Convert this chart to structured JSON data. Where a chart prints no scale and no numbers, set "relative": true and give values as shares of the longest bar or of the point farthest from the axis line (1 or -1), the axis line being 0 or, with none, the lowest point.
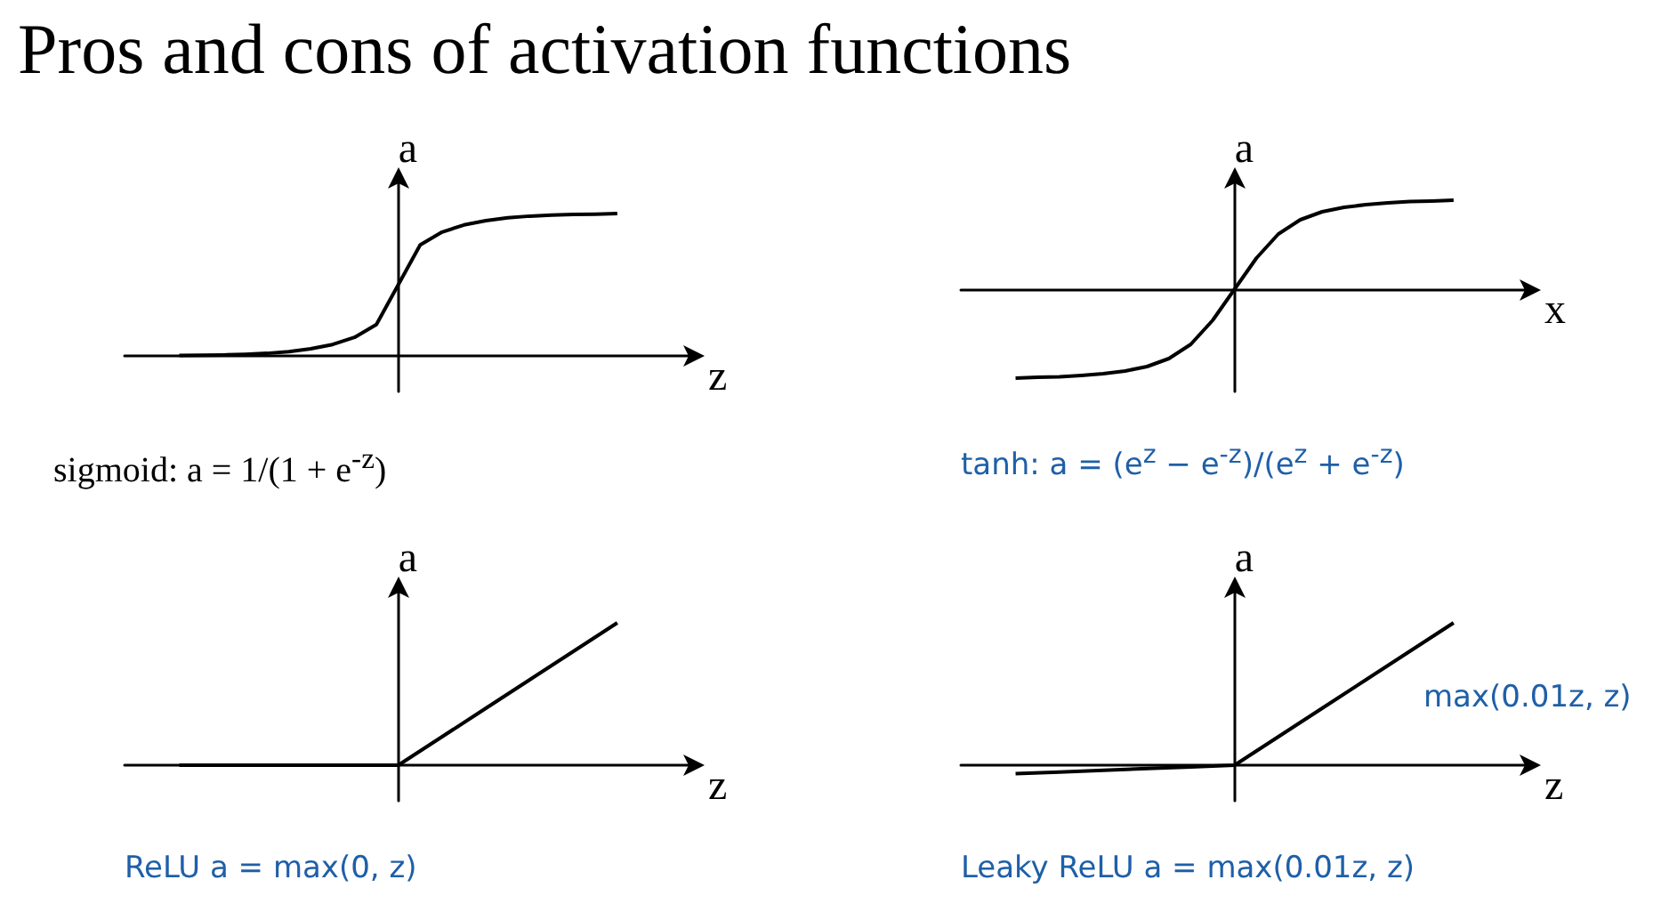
{
  "chart_data": [
    {
      "type": "line",
      "title": "Pros and cons of activation functions",
      "xlabel": "z",
      "ylabel": "a",
      "relative": true,
      "grid": false,
      "marker": "none",
      "categories": [
        null,
        null,
        null,
        null,
        null,
        null,
        null,
        null,
        null,
        null,
        null,
        null,
        null,
        null,
        null,
        null,
        null,
        null,
        null,
        null,
        null
      ],
      "series": [
        {
          "color": "#000000",
          "values": [
            0.0025,
            0.004,
            0.007,
            0.011,
            0.018,
            0.03,
            0.05,
            0.08,
            0.13,
            0.22,
            0.5,
            0.78,
            0.87,
            0.92,
            0.95,
            0.97,
            0.982,
            0.989,
            0.993,
            0.996,
            1
          ]
        }
      ],
      "annotations": [
        "sigmoid:  a = 1/(1 + e$^{-z}$)"
      ]
    },
    {
      "type": "line",
      "xlabel": "x",
      "ylabel": "a",
      "relative": true,
      "grid": false,
      "marker": "none",
      "categories": [
        null,
        null,
        null,
        null,
        null,
        null,
        null,
        null,
        null,
        null,
        null,
        null,
        null,
        null,
        null,
        null,
        null,
        null,
        null,
        null,
        null
      ],
      "series": [
        {
          "color": "#000000",
          "values": [
            -1,
            -0.99,
            -0.985,
            -0.97,
            -0.95,
            -0.92,
            -0.87,
            -0.78,
            -0.62,
            -0.35,
            0,
            0.35,
            0.62,
            0.78,
            0.87,
            0.92,
            0.95,
            0.97,
            0.985,
            0.99,
            1
          ]
        }
      ],
      "annotations": [
        "tanh:  a = (e$^{z}$ − e$^{-z}$)/(e$^{z}$ + e$^{-z}$)"
      ]
    },
    {
      "type": "line",
      "xlabel": "z",
      "ylabel": "a",
      "relative": true,
      "grid": false,
      "marker": "none",
      "categories": [
        null,
        null,
        null,
        null,
        null,
        null,
        null,
        null,
        null,
        null,
        null
      ],
      "series": [
        {
          "color": "#000000",
          "values": [
            0,
            0,
            0,
            0,
            0,
            0,
            0.2,
            0.4,
            0.6,
            0.8,
            1
          ]
        }
      ],
      "annotations": [
        "ReLU     a = max(0, z)"
      ]
    },
    {
      "type": "line",
      "xlabel": "z",
      "ylabel": "a",
      "relative": true,
      "grid": false,
      "marker": "none",
      "categories": [
        null,
        null,
        null,
        null,
        null,
        null,
        null,
        null,
        null,
        null,
        null
      ],
      "series": [
        {
          "color": "#000000",
          "values": [
            -0.06,
            -0.048,
            -0.036,
            -0.024,
            -0.012,
            0,
            0.2,
            0.4,
            0.6,
            0.8,
            1
          ]
        }
      ],
      "annotations": [
        "max(0.01z, z)",
        "Leaky ReLU   a = max(0.01z, z)"
      ]
    }
  ]
}
